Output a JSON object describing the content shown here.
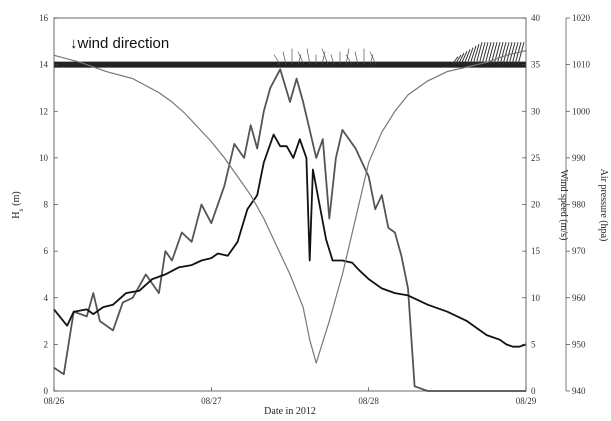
{
  "chart_data": {
    "type": "line",
    "title": "",
    "xlabel": "Date in 2012",
    "x_ticks": [
      "08/26",
      "08/27",
      "08/28",
      "08/29"
    ],
    "x_range": [
      "2012-08-26T00:00",
      "2012-08-29T00:00"
    ],
    "y_left": {
      "label": "H_s (m)",
      "label_main": "H",
      "label_sub": "s",
      "label_unit": "(m)",
      "range": [
        0,
        16
      ],
      "ticks": [
        "0",
        "2",
        "4",
        "6",
        "8",
        "10",
        "12",
        "14",
        "16"
      ]
    },
    "y_right1": {
      "label": "Wind speed (m/s)",
      "range": [
        0,
        40
      ],
      "ticks": [
        "0",
        "5",
        "10",
        "15",
        "20",
        "25",
        "30",
        "35",
        "40"
      ]
    },
    "y_right2": {
      "label": "Air pressure (hpa)",
      "range": [
        940,
        1020
      ],
      "ticks": [
        "940",
        "950",
        "960",
        "970",
        "980",
        "990",
        "1000",
        "1010",
        "1020"
      ]
    },
    "annotation": "↓wind direction",
    "series": [
      {
        "axis": "right1",
        "color": "#555555",
        "x": [
          "2012-08-26T00:00",
          "2012-08-26T01:30",
          "2012-08-26T03:00",
          "2012-08-26T05:00",
          "2012-08-26T06:00",
          "2012-08-26T07:00",
          "2012-08-26T09:00",
          "2012-08-26T10:30",
          "2012-08-26T12:00",
          "2012-08-26T14:00",
          "2012-08-26T16:00",
          "2012-08-26T17:00",
          "2012-08-26T18:00",
          "2012-08-26T19:30",
          "2012-08-26T21:00",
          "2012-08-26T22:30",
          "2012-08-27T00:00",
          "2012-08-27T02:00",
          "2012-08-27T03:30",
          "2012-08-27T05:00",
          "2012-08-27T06:00",
          "2012-08-27T07:00",
          "2012-08-27T08:00",
          "2012-08-27T09:00",
          "2012-08-27T10:30",
          "2012-08-27T12:00",
          "2012-08-27T13:00",
          "2012-08-27T14:00",
          "2012-08-27T15:00",
          "2012-08-27T16:00",
          "2012-08-27T17:00",
          "2012-08-27T18:00",
          "2012-08-27T19:00",
          "2012-08-27T20:00",
          "2012-08-27T21:00",
          "2012-08-27T22:00",
          "2012-08-27T23:00",
          "2012-08-28T00:00",
          "2012-08-28T01:00",
          "2012-08-28T02:00",
          "2012-08-28T03:00",
          "2012-08-28T04:00",
          "2012-08-28T05:00",
          "2012-08-28T06:00",
          "2012-08-28T07:00",
          "2012-08-28T09:00",
          "2012-08-28T12:00",
          "2012-08-28T15:00",
          "2012-08-28T18:00",
          "2012-08-28T20:00",
          "2012-08-28T21:00",
          "2012-08-28T22:00",
          "2012-08-28T23:00",
          "2012-08-29T00:00"
        ],
        "y": [
          2.5,
          1.8,
          8.5,
          8.0,
          10.5,
          7.5,
          6.5,
          9.5,
          10.0,
          12.5,
          10.5,
          15.0,
          14.0,
          17.0,
          16.0,
          20.0,
          18.0,
          22.0,
          26.5,
          25.0,
          28.5,
          26.0,
          30.0,
          32.5,
          34.5,
          31.0,
          33.5,
          31.0,
          28.0,
          25.0,
          27.0,
          18.5,
          25.0,
          28.0,
          27.0,
          26.0,
          24.5,
          23.0,
          19.5,
          21.0,
          17.5,
          17.0,
          14.5,
          11.0,
          0.5,
          0,
          0,
          0,
          0,
          0,
          0,
          0,
          0,
          0
        ]
      },
      {
        "axis": "left",
        "color": "#111111",
        "x": [
          "2012-08-26T00:00",
          "2012-08-26T02:00",
          "2012-08-26T03:00",
          "2012-08-26T05:00",
          "2012-08-26T06:00",
          "2012-08-26T07:30",
          "2012-08-26T09:00",
          "2012-08-26T11:00",
          "2012-08-26T13:00",
          "2012-08-26T15:00",
          "2012-08-26T17:00",
          "2012-08-26T19:00",
          "2012-08-26T21:00",
          "2012-08-26T22:30",
          "2012-08-27T00:00",
          "2012-08-27T01:00",
          "2012-08-27T02:30",
          "2012-08-27T04:00",
          "2012-08-27T05:30",
          "2012-08-27T07:00",
          "2012-08-27T08:00",
          "2012-08-27T09:30",
          "2012-08-27T10:30",
          "2012-08-27T11:30",
          "2012-08-27T12:30",
          "2012-08-27T13:30",
          "2012-08-27T14:30",
          "2012-08-27T15:00",
          "2012-08-27T15:30",
          "2012-08-27T16:30",
          "2012-08-27T17:30",
          "2012-08-27T18:30",
          "2012-08-27T20:00",
          "2012-08-27T21:30",
          "2012-08-27T22:30",
          "2012-08-28T00:00",
          "2012-08-28T02:00",
          "2012-08-28T04:00",
          "2012-08-28T06:00",
          "2012-08-28T09:00",
          "2012-08-28T12:00",
          "2012-08-28T15:00",
          "2012-08-28T18:00",
          "2012-08-28T20:00",
          "2012-08-28T21:00",
          "2012-08-28T22:00",
          "2012-08-28T23:00",
          "2012-08-29T00:00"
        ],
        "y": [
          3.5,
          2.8,
          3.4,
          3.5,
          3.3,
          3.6,
          3.7,
          4.2,
          4.3,
          4.8,
          5.0,
          5.3,
          5.4,
          5.6,
          5.7,
          5.9,
          5.8,
          6.4,
          7.8,
          8.4,
          9.8,
          11.0,
          10.5,
          10.5,
          10.0,
          10.8,
          10.0,
          5.6,
          9.5,
          8.0,
          6.5,
          5.6,
          5.6,
          5.5,
          5.2,
          4.8,
          4.4,
          4.2,
          4.1,
          3.7,
          3.4,
          3.0,
          2.4,
          2.2,
          2.0,
          1.9,
          1.9,
          2.0
        ]
      },
      {
        "axis": "right2",
        "color": "#777777",
        "x": [
          "2012-08-26T00:00",
          "2012-08-26T04:00",
          "2012-08-26T08:00",
          "2012-08-26T12:00",
          "2012-08-26T14:00",
          "2012-08-26T16:00",
          "2012-08-26T18:00",
          "2012-08-26T20:00",
          "2012-08-26T22:00",
          "2012-08-27T00:00",
          "2012-08-27T02:00",
          "2012-08-27T04:00",
          "2012-08-27T06:00",
          "2012-08-27T08:00",
          "2012-08-27T10:00",
          "2012-08-27T12:00",
          "2012-08-27T14:00",
          "2012-08-27T15:00",
          "2012-08-27T16:00",
          "2012-08-27T18:00",
          "2012-08-27T20:00",
          "2012-08-27T22:00",
          "2012-08-28T00:00",
          "2012-08-28T02:00",
          "2012-08-28T04:00",
          "2012-08-28T06:00",
          "2012-08-28T09:00",
          "2012-08-28T12:00",
          "2012-08-28T15:00",
          "2012-08-28T18:00",
          "2012-08-28T21:00",
          "2012-08-29T00:00"
        ],
        "y": [
          1012,
          1010.5,
          1008.5,
          1007,
          1005.5,
          1004,
          1002,
          999.5,
          996.5,
          993.5,
          990,
          986,
          982,
          977,
          971,
          965,
          958,
          951,
          946,
          955,
          965,
          977,
          989,
          995.5,
          1000,
          1003.5,
          1006.5,
          1008.5,
          1009.5,
          1010.5,
          1012,
          1013
        ]
      }
    ]
  }
}
